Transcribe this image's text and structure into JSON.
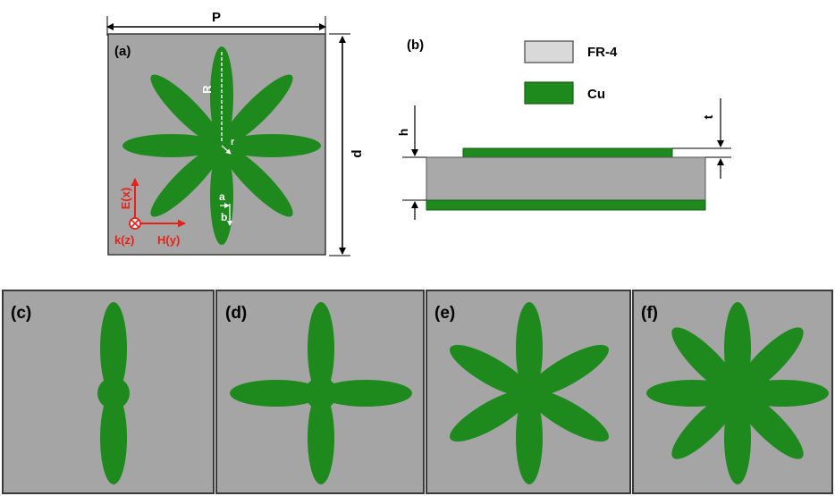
{
  "panel_a": {
    "tag": "(a)",
    "dim_period": "P",
    "dim_side": "d",
    "dim_petal_length": "R",
    "dim_inner_radius": "r",
    "dim_petal_a": "a",
    "dim_petal_b": "b",
    "axis_e": "E(x)",
    "axis_h": "H(y)",
    "axis_k": "k(z)"
  },
  "panel_b": {
    "tag": "(b)",
    "legend_substrate": "FR-4",
    "legend_metal": "Cu",
    "dim_h": "h",
    "dim_t": "t"
  },
  "variants": [
    {
      "tag": "(c)",
      "petals": 2
    },
    {
      "tag": "(d)",
      "petals": 4
    },
    {
      "tag": "(e)",
      "petals": 6
    },
    {
      "tag": "(f)",
      "petals": 8
    }
  ],
  "colors": {
    "substrate": "#a5a5a5",
    "copper": "#1e8a1e",
    "fr4_legend": "#d9d9d9",
    "axes": "#e8201a",
    "frame": "#3a3a3a",
    "dims": "#000000"
  }
}
